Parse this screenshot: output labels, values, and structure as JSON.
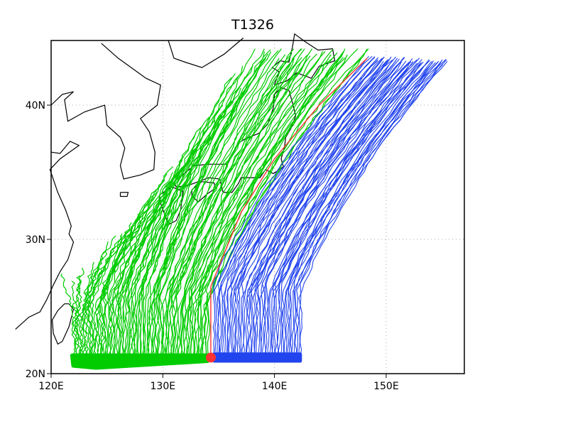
{
  "title": "T1326",
  "chart_data": {
    "type": "map-track-ensemble",
    "title": "T1326",
    "x_axis": {
      "ticks": [
        "120E",
        "130E",
        "140E",
        "150E"
      ],
      "range_deg": [
        120,
        157
      ]
    },
    "y_axis": {
      "ticks": [
        "20N",
        "30N",
        "40N"
      ],
      "range_deg": [
        20,
        45
      ]
    },
    "grid": true,
    "colors": {
      "west_tracks": "#00cc00",
      "east_tracks": "#2244ee",
      "reference_track": "#ff3333",
      "coast": "#000000"
    },
    "series": [
      {
        "name": "",
        "color": "green",
        "count": 95,
        "start_lon_range": [
          122,
          134
        ],
        "start_lat": 21,
        "end_lon_range": [
          121,
          148
        ],
        "end_lat_range": [
          25,
          44
        ]
      },
      {
        "name": "",
        "color": "red",
        "count": 1,
        "track": [
          [
            134.3,
            21.2
          ],
          [
            134.3,
            26.5
          ],
          [
            137.0,
            32.0
          ],
          [
            140.0,
            36.0
          ],
          [
            144.0,
            40.0
          ],
          [
            148.3,
            43.5
          ]
        ]
      },
      {
        "name": "",
        "color": "blue",
        "count": 55,
        "start_lon_range": [
          134.5,
          142.3
        ],
        "start_lat": 21,
        "end_lon_range": [
          148.5,
          155.5
        ],
        "end_lat_range": [
          42.5,
          43.5
        ]
      }
    ]
  }
}
